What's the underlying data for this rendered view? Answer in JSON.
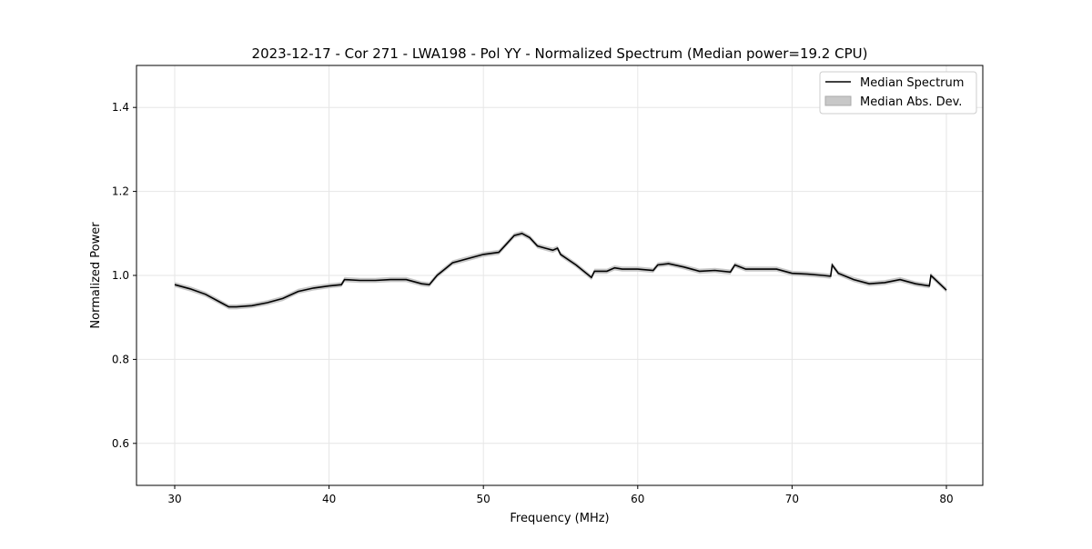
{
  "chart_data": {
    "type": "line",
    "title": "2023-12-17 - Cor 271 - LWA198 - Pol YY - Normalized Spectrum (Median power=19.2 CPU)",
    "xlabel": "Frequency (MHz)",
    "ylabel": "Normalized Power",
    "xlim": [
      27.5,
      82.4
    ],
    "ylim": [
      0.5,
      1.5
    ],
    "xticks": [
      30,
      40,
      50,
      60,
      70,
      80
    ],
    "yticks": [
      0.6,
      0.8,
      1.0,
      1.2,
      1.4
    ],
    "xtick_labels": [
      "30",
      "40",
      "50",
      "60",
      "70",
      "80"
    ],
    "ytick_labels": [
      "0.6",
      "0.8",
      "1.0",
      "1.2",
      "1.4"
    ],
    "grid": true,
    "legend_position": "top-right",
    "legend": [
      "Median Spectrum",
      "Median Abs. Dev."
    ],
    "mad": 0.006,
    "colors": {
      "line": "#000000",
      "band": "#c8c8c8",
      "grid": "#e6e6e6"
    },
    "series": [
      {
        "name": "Median Spectrum",
        "x": [
          30,
          31,
          32,
          33,
          33.5,
          34,
          35,
          36,
          37,
          38,
          39,
          40,
          40.8,
          41,
          42,
          43,
          44,
          45,
          46,
          46.5,
          47,
          47.5,
          48,
          49,
          50,
          51,
          51.5,
          52,
          52.5,
          53,
          53.5,
          54,
          54.5,
          54.8,
          55,
          56,
          57,
          57.2,
          58,
          58.5,
          59,
          60,
          61,
          61.3,
          62,
          63,
          64,
          65,
          66,
          66.3,
          67,
          68,
          69,
          70,
          71,
          72,
          72.5,
          72.6,
          73,
          74,
          75,
          76,
          77,
          78,
          78.9,
          79,
          80
        ],
        "y": [
          0.978,
          0.968,
          0.955,
          0.935,
          0.925,
          0.925,
          0.928,
          0.935,
          0.945,
          0.962,
          0.97,
          0.975,
          0.978,
          0.99,
          0.988,
          0.988,
          0.99,
          0.99,
          0.98,
          0.978,
          1.0,
          1.015,
          1.03,
          1.04,
          1.05,
          1.055,
          1.075,
          1.095,
          1.1,
          1.09,
          1.07,
          1.065,
          1.06,
          1.065,
          1.05,
          1.025,
          0.995,
          1.01,
          1.01,
          1.018,
          1.015,
          1.015,
          1.012,
          1.025,
          1.028,
          1.02,
          1.01,
          1.012,
          1.008,
          1.025,
          1.015,
          1.015,
          1.015,
          1.005,
          1.003,
          1.0,
          0.998,
          1.025,
          1.005,
          0.99,
          0.98,
          0.983,
          0.99,
          0.98,
          0.975,
          1.0,
          0.965
        ]
      }
    ]
  }
}
